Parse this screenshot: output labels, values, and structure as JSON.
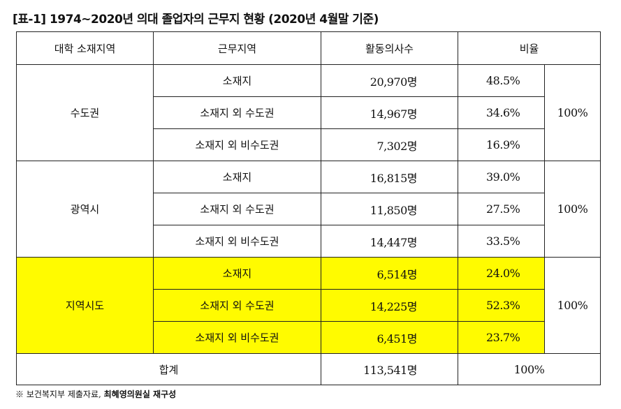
{
  "title": "[표-1] 1974~2020년 의대 졸업자의 근무지 현황 (2020년 4월말 기준)",
  "headers": {
    "region": "대학 소재지역",
    "workplace": "근무지역",
    "doctors": "활동의사수",
    "ratio": "비율"
  },
  "groups": [
    {
      "region": "수도권",
      "total_ratio": "100%",
      "highlight": false,
      "rows": [
        {
          "workplace": "소재지",
          "count": "20,970명",
          "ratio": "48.5%"
        },
        {
          "workplace": "소재지 외 수도권",
          "count": "14,967명",
          "ratio": "34.6%"
        },
        {
          "workplace": "소재지 외 비수도권",
          "count": "7,302명",
          "ratio": "16.9%"
        }
      ]
    },
    {
      "region": "광역시",
      "total_ratio": "100%",
      "highlight": false,
      "rows": [
        {
          "workplace": "소재지",
          "count": "16,815명",
          "ratio": "39.0%"
        },
        {
          "workplace": "소재지 외 수도권",
          "count": "11,850명",
          "ratio": "27.5%"
        },
        {
          "workplace": "소재지 외 비수도권",
          "count": "14,447명",
          "ratio": "33.5%"
        }
      ]
    },
    {
      "region": "지역시도",
      "total_ratio": "100%",
      "highlight": true,
      "highlight_color": "#fffb00",
      "rows": [
        {
          "workplace": "소재지",
          "count": "6,514명",
          "ratio": "24.0%"
        },
        {
          "workplace": "소재지 외 수도권",
          "count": "14,225명",
          "ratio": "52.3%"
        },
        {
          "workplace": "소재지 외 비수도권",
          "count": "6,451명",
          "ratio": "23.7%"
        }
      ]
    }
  ],
  "total": {
    "label": "합계",
    "count": "113,541명",
    "ratio": "100%"
  },
  "footnote": {
    "source": "※ 보건복지부 제출자료,",
    "author": "최혜영의원실 재구성"
  }
}
